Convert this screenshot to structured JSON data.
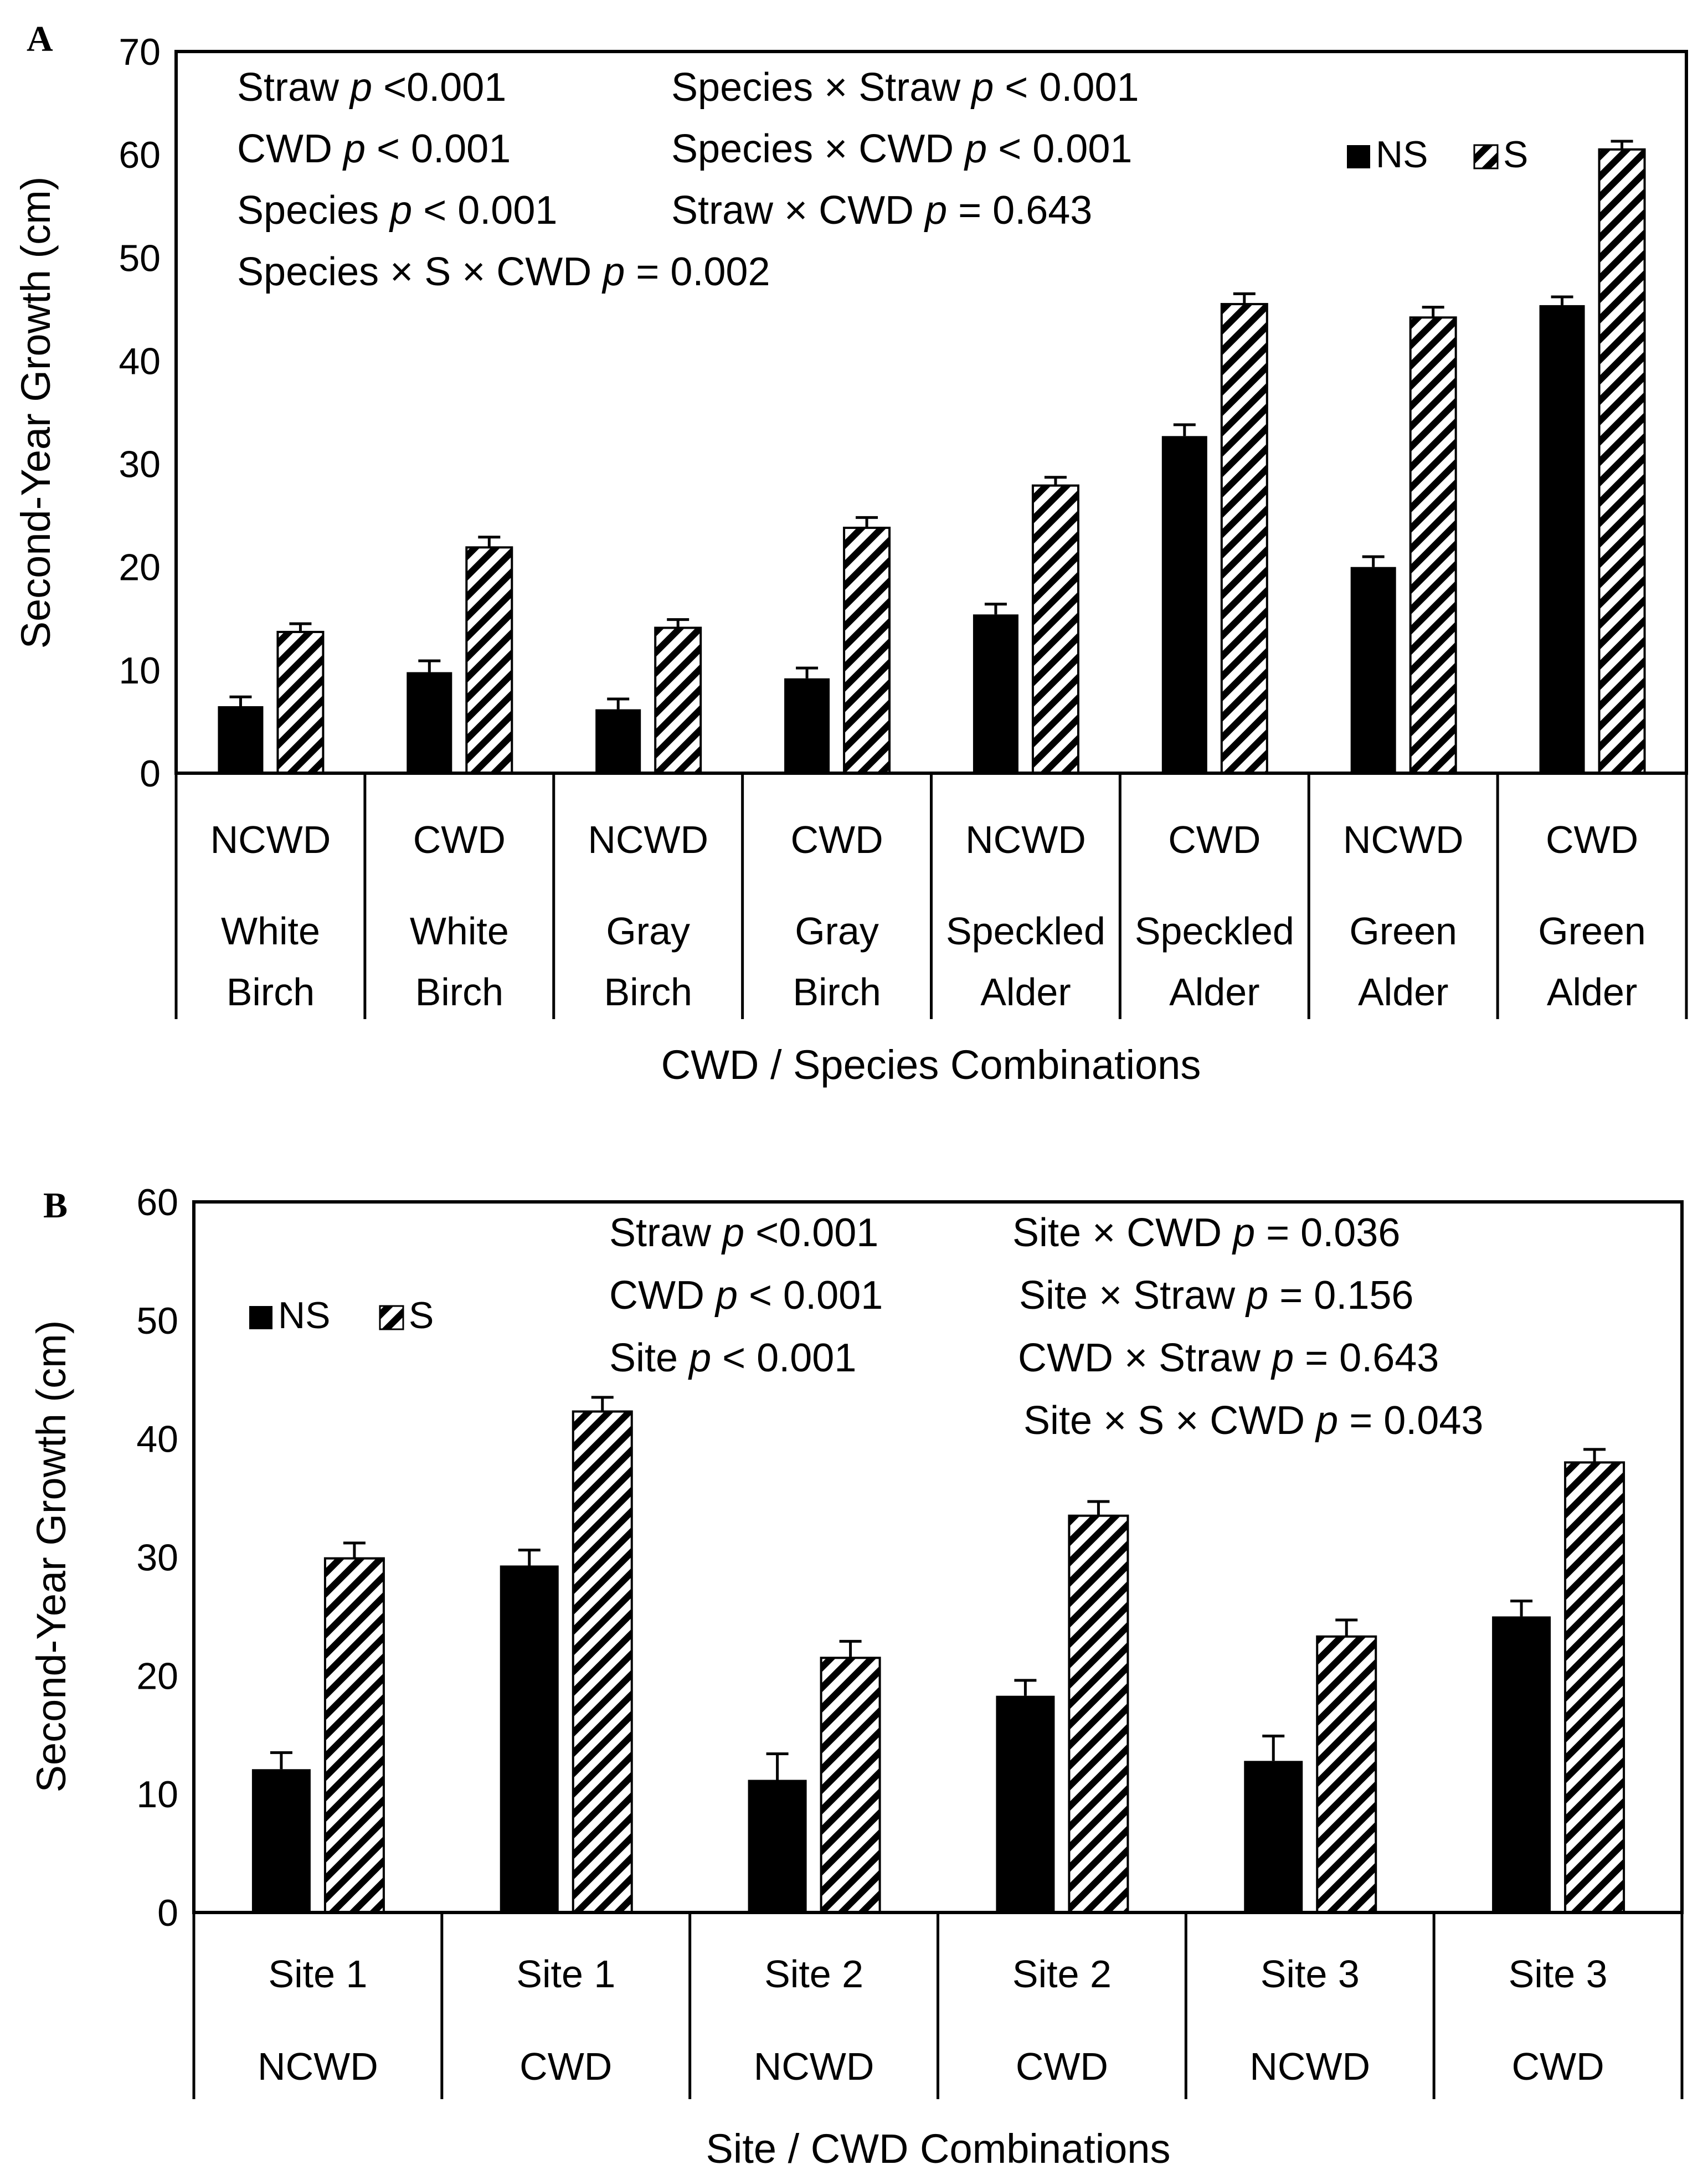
{
  "chart_data": [
    {
      "type": "bar",
      "panel_label": "A",
      "ylabel": "Second-Year Growth (cm)",
      "xlabel": "CWD / Species Combinations",
      "ylim": [
        0,
        70
      ],
      "yticks": [
        "0",
        "10",
        "20",
        "30",
        "40",
        "50",
        "60",
        "70"
      ],
      "categories": [
        {
          "cwd": "NCWD",
          "species_line1": "White",
          "species_line2": "Birch"
        },
        {
          "cwd": "CWD",
          "species_line1": "White",
          "species_line2": "Birch"
        },
        {
          "cwd": "NCWD",
          "species_line1": "Gray",
          "species_line2": "Birch"
        },
        {
          "cwd": "CWD",
          "species_line1": "Gray",
          "species_line2": "Birch"
        },
        {
          "cwd": "NCWD",
          "species_line1": "Speckled",
          "species_line2": "Alder"
        },
        {
          "cwd": "CWD",
          "species_line1": "Speckled",
          "species_line2": "Alder"
        },
        {
          "cwd": "NCWD",
          "species_line1": "Green",
          "species_line2": "Alder"
        },
        {
          "cwd": "CWD",
          "species_line1": "Green",
          "species_line2": "Alder"
        }
      ],
      "series": [
        {
          "name": "NS",
          "values": [
            6.5,
            9.8,
            6.2,
            9.2,
            15.4,
            32.7,
            20.0,
            45.4
          ],
          "errors": [
            0.9,
            1.1,
            1.0,
            1.0,
            1.0,
            1.1,
            1.0,
            0.8
          ]
        },
        {
          "name": "S",
          "values": [
            13.7,
            21.9,
            14.1,
            23.8,
            27.9,
            45.5,
            44.2,
            60.5
          ],
          "errors": [
            0.8,
            1.0,
            0.8,
            1.0,
            0.8,
            1.0,
            1.0,
            0.8
          ]
        }
      ],
      "legend": [
        {
          "label": "NS"
        },
        {
          "label": "S"
        }
      ],
      "stats": [
        {
          "pre": "Straw ",
          "p": "p",
          "post": "  <0.001"
        },
        {
          "pre": "CWD ",
          "p": "p",
          "post": " < 0.001"
        },
        {
          "pre": "Species ",
          "p": "p",
          "post": " < 0.001"
        },
        {
          "pre": "Species × S × CWD ",
          "p": "p",
          "post": " = 0.002"
        },
        {
          "pre": "Species × Straw ",
          "p": "p",
          "post": " < 0.001"
        },
        {
          "pre": "Species × CWD ",
          "p": "p",
          "post": " < 0.001"
        },
        {
          "pre": "Straw × CWD ",
          "p": "p",
          "post": " = 0.643"
        }
      ]
    },
    {
      "type": "bar",
      "panel_label": "B",
      "ylabel": "Second-Year Growth (cm)",
      "xlabel": "Site / CWD Combinations",
      "ylim": [
        0,
        60
      ],
      "yticks": [
        "0",
        "10",
        "20",
        "30",
        "40",
        "50",
        "60"
      ],
      "categories": [
        {
          "site": "Site 1",
          "cwd": "NCWD"
        },
        {
          "site": "Site 1",
          "cwd": "CWD"
        },
        {
          "site": "Site 2",
          "cwd": "NCWD"
        },
        {
          "site": "Site 2",
          "cwd": "CWD"
        },
        {
          "site": "Site 3",
          "cwd": "NCWD"
        },
        {
          "site": "Site 3",
          "cwd": "CWD"
        }
      ],
      "series": [
        {
          "name": "NS",
          "values": [
            12.1,
            29.3,
            11.2,
            18.3,
            12.8,
            25.0
          ],
          "errors": [
            1.4,
            1.3,
            2.2,
            1.3,
            2.1,
            1.3
          ]
        },
        {
          "name": "S",
          "values": [
            29.9,
            42.3,
            21.5,
            33.5,
            23.3,
            38.0
          ],
          "errors": [
            1.3,
            1.2,
            1.4,
            1.2,
            1.4,
            1.1
          ]
        }
      ],
      "legend": [
        {
          "label": "NS"
        },
        {
          "label": "S"
        }
      ],
      "stats": [
        {
          "pre": "Straw ",
          "p": "p",
          "post": " <0.001"
        },
        {
          "pre": "CWD ",
          "p": "p",
          "post": " < 0.001"
        },
        {
          "pre": "Site ",
          "p": "p",
          "post": " < 0.001"
        },
        {
          "pre": "Site × CWD ",
          "p": "p",
          "post": " = 0.036"
        },
        {
          "pre": "Site × Straw ",
          "p": "p",
          "post": " = 0.156"
        },
        {
          "pre": "CWD × Straw ",
          "p": "p",
          "post": " = 0.643"
        },
        {
          "pre": "Site × S × CWD ",
          "p": "p",
          "post": " = 0.043"
        }
      ]
    }
  ],
  "colors": {
    "ns_fill": "#000000",
    "s_hatch": "#000000",
    "s_background": "#ffffff",
    "axis": "#000000"
  }
}
